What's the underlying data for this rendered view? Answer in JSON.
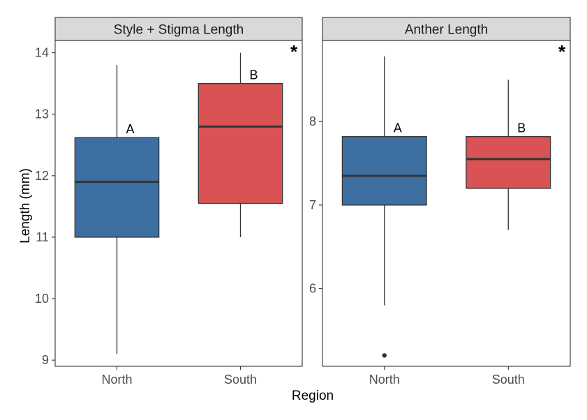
{
  "chart_data": {
    "type": "boxplot",
    "xlabel": "Region",
    "ylabel": "Length (mm)",
    "categories": [
      "North",
      "South"
    ],
    "colors": {
      "North": "#3d6fa3",
      "South": "#d95254"
    },
    "panels": [
      {
        "title": "Style + Stigma Length",
        "ylim": [
          8.9,
          14.2
        ],
        "yticks": [
          9,
          10,
          11,
          12,
          13,
          14
        ],
        "significance": "*",
        "boxes": [
          {
            "category": "North",
            "whisker_low": 9.1,
            "q1": 11.0,
            "median": 11.9,
            "q3": 12.62,
            "whisker_high": 13.8,
            "outliers": [],
            "letter": "A"
          },
          {
            "category": "South",
            "whisker_low": 11.0,
            "q1": 11.55,
            "median": 12.8,
            "q3": 13.5,
            "whisker_high": 14.0,
            "outliers": [],
            "letter": "B"
          }
        ]
      },
      {
        "title": "Anther Length",
        "ylim": [
          5.07,
          8.97
        ],
        "yticks": [
          6,
          7,
          8
        ],
        "significance": "*",
        "boxes": [
          {
            "category": "North",
            "whisker_low": 5.8,
            "q1": 7.0,
            "median": 7.35,
            "q3": 7.82,
            "whisker_high": 8.78,
            "outliers": [
              5.2
            ],
            "letter": "A"
          },
          {
            "category": "South",
            "whisker_low": 6.7,
            "q1": 7.2,
            "median": 7.55,
            "q3": 7.82,
            "whisker_high": 8.5,
            "outliers": [],
            "letter": "B"
          }
        ]
      }
    ]
  }
}
